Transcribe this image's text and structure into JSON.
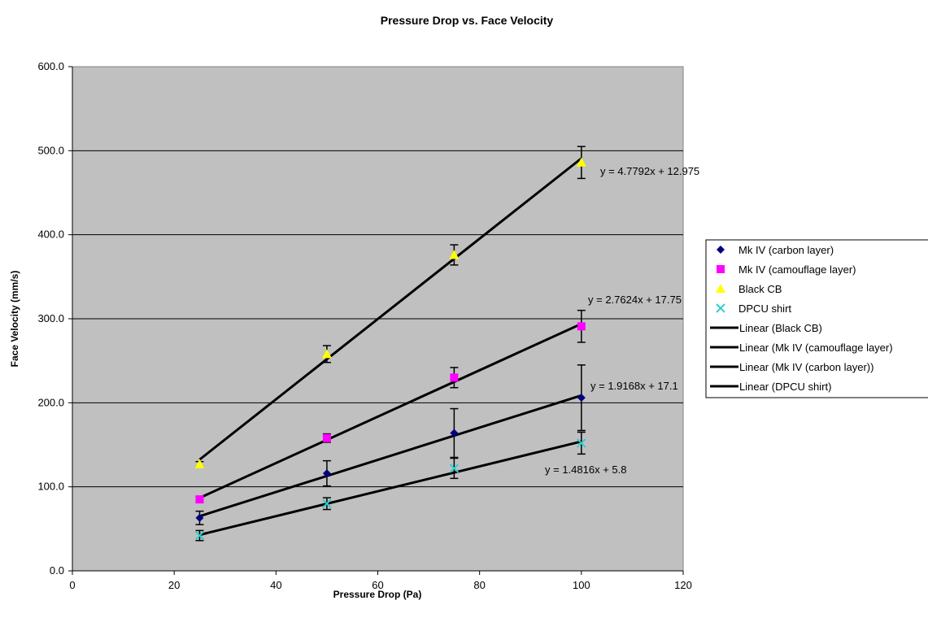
{
  "chart_data": {
    "type": "scatter",
    "title": "Pressure Drop vs. Face Velocity",
    "xlabel": "Pressure Drop (Pa)",
    "ylabel": "Face Velocity (mm/s)",
    "xlim": [
      0,
      120
    ],
    "ylim": [
      0,
      600
    ],
    "x_ticks": [
      "0",
      "20",
      "40",
      "60",
      "80",
      "100",
      "120"
    ],
    "y_ticks": [
      "0.0",
      "100.0",
      "200.0",
      "300.0",
      "400.0",
      "500.0",
      "600.0"
    ],
    "grid": "horizontal major gridlines",
    "plot_background": "#c0c0c0",
    "legend_position": "right",
    "series": [
      {
        "name": "Mk IV (carbon layer)",
        "marker": "diamond",
        "color": "#000080",
        "x": [
          25,
          50,
          75,
          100
        ],
        "y": [
          63,
          116,
          164,
          206
        ],
        "error": [
          8,
          15,
          29,
          39
        ]
      },
      {
        "name": "Mk IV (camouflage layer)",
        "marker": "square",
        "color": "#ff00ff",
        "x": [
          25,
          50,
          75,
          100
        ],
        "y": [
          85,
          158,
          230,
          291
        ],
        "error": [
          3,
          5,
          12,
          19
        ]
      },
      {
        "name": "Black CB",
        "marker": "triangle",
        "color": "#ffff00",
        "x": [
          25,
          50,
          75,
          100
        ],
        "y": [
          127,
          258,
          376,
          486
        ],
        "error": [
          3,
          10,
          12,
          19
        ]
      },
      {
        "name": "DPCU shirt",
        "marker": "x",
        "color": "#33cccc",
        "x": [
          25,
          50,
          75,
          100
        ],
        "y": [
          42,
          80,
          122,
          152
        ],
        "error": [
          6,
          7,
          12,
          13
        ]
      }
    ],
    "trendlines": [
      {
        "name": "Linear (Black CB)",
        "slope": 4.7792,
        "intercept": 12.975,
        "equation": "y = 4.7792x + 12.975",
        "x_range": [
          25,
          100
        ],
        "color": "#000000"
      },
      {
        "name": "Linear (Mk IV (camouflage layer)",
        "slope": 2.7624,
        "intercept": 17.75,
        "equation": "y = 2.7624x + 17.75",
        "x_range": [
          25,
          100
        ],
        "color": "#000000"
      },
      {
        "name": "Linear (Mk IV (carbon layer))",
        "slope": 1.9168,
        "intercept": 17.1,
        "equation": "y = 1.9168x + 17.1",
        "x_range": [
          25,
          100
        ],
        "color": "#000000"
      },
      {
        "name": "Linear (DPCU shirt)",
        "slope": 1.4816,
        "intercept": 5.8,
        "equation": "y = 1.4816x + 5.8",
        "x_range": [
          25,
          100
        ],
        "color": "#000000"
      }
    ]
  }
}
